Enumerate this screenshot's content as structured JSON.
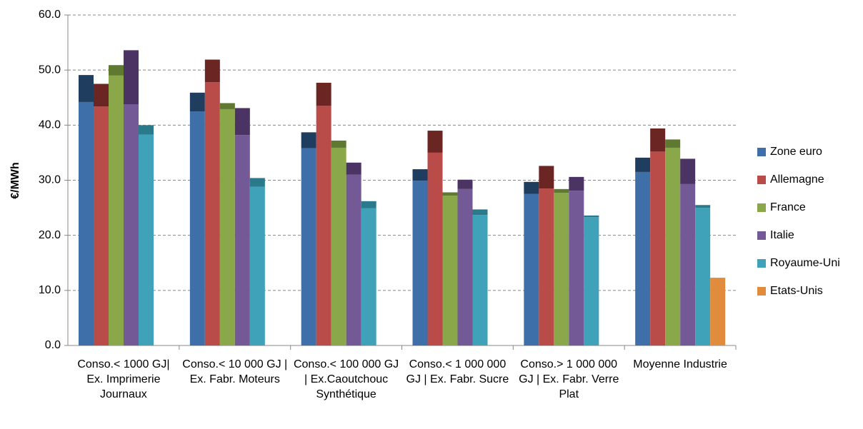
{
  "chart_data": {
    "type": "bar",
    "stacked_top": true,
    "y_label": "€/MWh",
    "categories": [
      "Conso.< 1000 GJ| Ex. Imprimerie Journaux",
      "Conso.< 10 000 GJ | Ex. Fabr. Moteurs",
      "Conso.< 100 000 GJ | Ex.Caoutchouc Synthétique",
      "Conso.< 1 000 000 GJ | Ex. Fabr. Sucre",
      "Conso.> 1 000 000 GJ | Ex. Fabr. Verre Plat",
      "Moyenne Industrie"
    ],
    "series": [
      {
        "name": "Zone euro",
        "color": "#3f6fa8",
        "dark_color": "#1f3d5e",
        "values": [
          44.2,
          42.5,
          35.8,
          29.9,
          27.5,
          31.5
        ],
        "increments": [
          4.9,
          3.4,
          2.9,
          2.1,
          2.2,
          2.6
        ]
      },
      {
        "name": "Allemagne",
        "color": "#b94b48",
        "dark_color": "#6b2523",
        "values": [
          43.4,
          47.8,
          43.5,
          35.0,
          28.5,
          35.2
        ],
        "increments": [
          4.1,
          4.1,
          4.2,
          4.0,
          4.1,
          4.2
        ]
      },
      {
        "name": "France",
        "color": "#8aa84a",
        "dark_color": "#5f7a30",
        "values": [
          49.0,
          42.9,
          35.9,
          27.2,
          27.7,
          35.9
        ],
        "increments": [
          1.9,
          1.1,
          1.3,
          0.6,
          0.7,
          1.5
        ]
      },
      {
        "name": "Italie",
        "color": "#735a96",
        "dark_color": "#4b3463",
        "values": [
          43.8,
          38.2,
          31.0,
          28.4,
          28.1,
          29.3
        ],
        "increments": [
          9.8,
          4.9,
          2.2,
          1.7,
          2.5,
          4.6
        ]
      },
      {
        "name": "Royaume-Uni",
        "color": "#3fa2b8",
        "dark_color": "#2a7a8c",
        "values": [
          38.3,
          28.8,
          24.9,
          23.7,
          23.3,
          25.0
        ],
        "increments": [
          1.7,
          1.6,
          1.3,
          1.0,
          0.3,
          0.5
        ]
      },
      {
        "name": "Etats-Unis",
        "color": "#e08c3c",
        "dark_color": "#a85f20",
        "values": [
          null,
          null,
          null,
          null,
          null,
          12.3
        ],
        "increments": [
          null,
          null,
          null,
          null,
          null,
          null
        ]
      }
    ],
    "ylim": [
      0,
      60
    ],
    "yticks": [
      {
        "value": 0,
        "label": "0.0"
      },
      {
        "value": 10,
        "label": "10.0"
      },
      {
        "value": 20,
        "label": "20.0"
      },
      {
        "value": 30,
        "label": "30.0"
      },
      {
        "value": 40,
        "label": "40.0"
      },
      {
        "value": 50,
        "label": "50.0"
      },
      {
        "value": 60,
        "label": "60.0"
      }
    ],
    "grid": true,
    "legend": "right"
  }
}
